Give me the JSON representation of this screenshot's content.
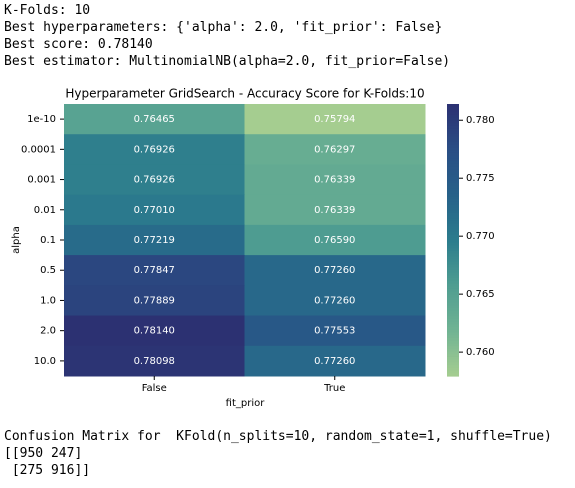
{
  "header_output": {
    "lines": [
      "K-Folds: 10",
      "Best hyperparameters: {'alpha': 2.0, 'fit_prior': False}",
      "Best score: 0.78140",
      "Best estimator: MultinomialNB(alpha=2.0, fit_prior=False)"
    ]
  },
  "chart_data": {
    "type": "heatmap",
    "title": "Hyperparameter GridSearch - Accuracy Score for K-Folds:10",
    "x_label": "fit_prior",
    "y_label": "alpha",
    "columns": [
      "False",
      "True"
    ],
    "categories": [
      "1e-10",
      "0.0001",
      "0.001",
      "0.01",
      "0.1",
      "0.5",
      "1.0",
      "2.0",
      "10.0"
    ],
    "values": [
      [
        0.76465,
        0.75794
      ],
      [
        0.76926,
        0.76297
      ],
      [
        0.76926,
        0.76339
      ],
      [
        0.7701,
        0.76339
      ],
      [
        0.77219,
        0.7659
      ],
      [
        0.77847,
        0.7726
      ],
      [
        0.77889,
        0.7726
      ],
      [
        0.7814,
        0.77553
      ],
      [
        0.78098,
        0.7726
      ]
    ],
    "value_labels": [
      [
        "0.76465",
        "0.75794"
      ],
      [
        "0.76926",
        "0.76297"
      ],
      [
        "0.76926",
        "0.76339"
      ],
      [
        "0.77010",
        "0.76339"
      ],
      [
        "0.77219",
        "0.76590"
      ],
      [
        "0.77847",
        "0.77260"
      ],
      [
        "0.77889",
        "0.77260"
      ],
      [
        "0.78140",
        "0.77553"
      ],
      [
        "0.78098",
        "0.77260"
      ]
    ],
    "colormap": [
      "#a5cd90",
      "#70b393",
      "#4f9d91",
      "#2b7c8d",
      "#276189",
      "#2a4e85",
      "#2c3172"
    ],
    "zlim": [
      0.75794,
      0.7814
    ],
    "zticks": [
      {
        "value": 0.76,
        "label": "0.760"
      },
      {
        "value": 0.765,
        "label": "0.765"
      },
      {
        "value": 0.77,
        "label": "0.770"
      },
      {
        "value": 0.775,
        "label": "0.775"
      },
      {
        "value": 0.78,
        "label": "0.780"
      }
    ]
  },
  "footer_output": {
    "lines": [
      "Confusion Matrix for  KFold(n_splits=10, random_state=1, shuffle=True)",
      "[[950 247]",
      " [275 916]]"
    ]
  }
}
